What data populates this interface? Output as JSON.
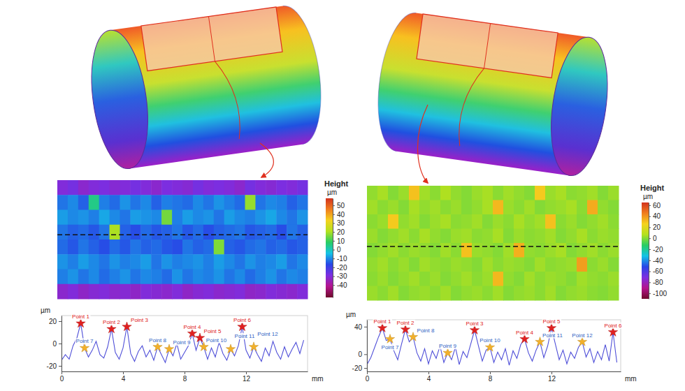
{
  "chart_data": [
    {
      "type": "heatmap",
      "cells": [
        [
          -30,
          -28,
          -32,
          -30,
          -29,
          -31,
          -30,
          -28,
          -30,
          -32,
          -29,
          -30,
          -31,
          -28,
          -30,
          -29,
          -30,
          -32,
          -28,
          -30,
          -31,
          -29,
          -30,
          -28
        ],
        [
          -12,
          -10,
          -14,
          5,
          -11,
          -13,
          -9,
          -12,
          -10,
          -14,
          -11,
          -12,
          -13,
          -10,
          -12,
          -9,
          -11,
          -13,
          18,
          -12,
          -10,
          -11,
          -14,
          -12
        ],
        [
          -8,
          -10,
          -9,
          -11,
          -7,
          -10,
          -12,
          -8,
          -9,
          -10,
          15,
          -11,
          -8,
          -10,
          -9,
          -12,
          -8,
          -10,
          -11,
          -9,
          -7,
          -10,
          -12,
          -9
        ],
        [
          -12,
          -14,
          -13,
          -15,
          -12,
          20,
          -14,
          -16,
          -13,
          -15,
          -14,
          -12,
          -15,
          -13,
          -16,
          -14,
          -13,
          -12,
          -15,
          -14,
          -13,
          -16,
          -12,
          -14
        ],
        [
          -13,
          -15,
          -12,
          -14,
          -16,
          -13,
          -15,
          -12,
          -14,
          -13,
          -15,
          -16,
          -12,
          -14,
          -13,
          16,
          -14,
          -15,
          -13,
          -12,
          -14,
          -13,
          -15,
          -14
        ],
        [
          -9,
          -11,
          -8,
          -10,
          -12,
          -9,
          -11,
          -10,
          -8,
          -12,
          -9,
          -11,
          -10,
          -9,
          -11,
          -8,
          -10,
          -12,
          -9,
          -11,
          -10,
          -8,
          -12,
          -10
        ],
        [
          -11,
          -9,
          -12,
          -10,
          -13,
          -11,
          -9,
          -12,
          -10,
          -11,
          -13,
          -9,
          -12,
          -10,
          -11,
          -9,
          -12,
          -10,
          -13,
          -11,
          -9,
          -12,
          -10,
          -11
        ],
        [
          -32,
          -30,
          -33,
          -31,
          -30,
          -32,
          -31,
          -33,
          -30,
          -31,
          -32,
          -30,
          -33,
          -31,
          -30,
          -32,
          -31,
          -30,
          -33,
          -32,
          -30,
          -31,
          -32,
          -30
        ]
      ],
      "colorbar": {
        "title": "Height",
        "unit": "µm",
        "range": [
          -54,
          58
        ],
        "ticks": [
          50,
          40,
          30,
          20,
          10,
          0,
          -10,
          -20,
          -30,
          -40
        ]
      }
    },
    {
      "type": "line",
      "x": [
        0,
        0.25,
        0.5,
        0.75,
        1,
        1.25,
        1.5,
        1.75,
        2,
        2.25,
        2.5,
        2.75,
        3,
        3.25,
        3.5,
        3.75,
        4,
        4.25,
        4.5,
        4.75,
        5,
        5.25,
        5.5,
        5.75,
        6,
        6.25,
        6.5,
        6.75,
        7,
        7.25,
        7.5,
        7.75,
        8,
        8.25,
        8.5,
        8.75,
        9,
        9.25,
        9.5,
        9.75,
        10,
        10.25,
        10.5,
        10.75,
        11,
        11.25,
        11.5,
        11.75,
        12,
        12.25,
        12.5,
        12.75,
        13,
        13.25,
        13.5,
        13.75,
        14,
        14.25,
        14.5,
        14.75,
        15,
        15.25,
        15.5,
        15.75
      ],
      "values": [
        -15,
        -10,
        -14,
        -2,
        5,
        18,
        -4,
        -12,
        -6,
        2,
        -10,
        -13,
        -3,
        13,
        -8,
        -14,
        -4,
        15,
        -9,
        -16,
        -7,
        -2,
        -12,
        -6,
        -15,
        -3,
        -10,
        -17,
        -5,
        -11,
        0,
        -14,
        -8,
        -2,
        9,
        -6,
        5,
        -3,
        -14,
        -4,
        -12,
        1,
        -9,
        -15,
        -5,
        -11,
        -2,
        15,
        -6,
        -13,
        -3,
        -10,
        -16,
        -4,
        -11,
        2,
        -8,
        -14,
        -3,
        -12,
        -5,
        1,
        -9,
        3
      ],
      "color": "#4f4fd8",
      "xlim": [
        0,
        16
      ],
      "xticks": [
        0,
        4,
        8,
        12
      ],
      "ylim": [
        -25,
        25
      ],
      "yticks": [
        -20,
        0,
        20
      ],
      "x_label": "mm",
      "y_label": "µm",
      "peaks": {
        "color": "#e02020",
        "marker": "star",
        "points": [
          {
            "text": "Point 1",
            "x": 1.25,
            "y": 18
          },
          {
            "text": "Point 2",
            "x": 3.25,
            "y": 13
          },
          {
            "text": "Point 3",
            "x": 4.25,
            "y": 15
          },
          {
            "text": "Point 4",
            "x": 8.5,
            "y": 9
          },
          {
            "text": "Point 5",
            "x": 9,
            "y": 5
          },
          {
            "text": "Point 6",
            "x": 11.75,
            "y": 15
          }
        ]
      },
      "valleys": {
        "color": "#f2b02a",
        "marker": "star",
        "points": [
          {
            "text": "Point 7",
            "x": 1.5,
            "y": -4
          },
          {
            "text": "Point 8",
            "x": 6.25,
            "y": -3
          },
          {
            "text": "Point 9",
            "x": 7,
            "y": -5
          },
          {
            "text": "Point 10",
            "x": 9.25,
            "y": -3
          },
          {
            "text": "Point 11",
            "x": 11,
            "y": -5
          },
          {
            "text": "Point 12",
            "x": 12.5,
            "y": -3
          }
        ]
      }
    },
    {
      "type": "heatmap",
      "cells": [
        [
          2,
          5,
          0,
          3,
          30,
          4,
          1,
          6,
          2,
          0,
          3,
          5,
          1,
          4,
          2,
          0,
          28,
          3,
          5,
          1,
          2,
          4,
          0,
          3
        ],
        [
          4,
          1,
          3,
          0,
          5,
          2,
          4,
          1,
          3,
          0,
          2,
          5,
          32,
          3,
          1,
          4,
          0,
          2,
          3,
          5,
          1,
          35,
          2,
          0
        ],
        [
          1,
          3,
          28,
          2,
          4,
          0,
          3,
          5,
          1,
          2,
          4,
          0,
          3,
          1,
          5,
          2,
          4,
          30,
          1,
          3,
          0,
          2,
          4,
          1
        ],
        [
          3,
          0,
          2,
          4,
          1,
          5,
          2,
          0,
          3,
          4,
          1,
          2,
          5,
          0,
          3,
          1,
          2,
          4,
          0,
          2,
          5,
          1,
          3,
          2
        ],
        [
          0,
          2,
          4,
          1,
          3,
          2,
          0,
          4,
          1,
          30,
          3,
          2,
          0,
          4,
          34,
          2,
          1,
          3,
          5,
          0,
          2,
          4,
          1,
          3
        ],
        [
          2,
          4,
          1,
          3,
          0,
          4,
          2,
          1,
          3,
          2,
          0,
          4,
          1,
          3,
          2,
          0,
          4,
          1,
          2,
          3,
          38,
          1,
          3,
          0
        ],
        [
          1,
          3,
          0,
          2,
          4,
          1,
          3,
          0,
          2,
          4,
          1,
          3,
          32,
          2,
          0,
          4,
          1,
          3,
          2,
          0,
          4,
          2,
          1,
          3
        ],
        [
          3,
          1,
          4,
          0,
          2,
          3,
          1,
          4,
          0,
          2,
          3,
          1,
          4,
          0,
          2,
          3,
          1,
          4,
          0,
          2,
          3,
          1,
          0,
          2
        ]
      ],
      "colorbar": {
        "title": "Height",
        "unit": "µm",
        "range": [
          -110,
          65
        ],
        "ticks": [
          60,
          40,
          20,
          0,
          -20,
          -40,
          -60,
          -80,
          -100
        ]
      }
    },
    {
      "type": "line",
      "x": [
        0,
        0.25,
        0.5,
        0.75,
        1,
        1.25,
        1.5,
        1.75,
        2,
        2.25,
        2.5,
        2.75,
        3,
        3.25,
        3.5,
        3.75,
        4,
        4.25,
        4.5,
        4.75,
        5,
        5.25,
        5.5,
        5.75,
        6,
        6.25,
        6.5,
        6.75,
        7,
        7.25,
        7.5,
        7.75,
        8,
        8.25,
        8.5,
        8.75,
        9,
        9.25,
        9.5,
        9.75,
        10,
        10.25,
        10.5,
        10.75,
        11,
        11.25,
        11.5,
        11.75,
        12,
        12.25,
        12.5,
        12.75,
        13,
        13.25,
        13.5,
        13.75,
        14,
        14.25,
        14.5,
        14.75,
        15,
        15.25,
        15.5,
        15.75,
        16,
        16.25
      ],
      "values": [
        -15,
        -5,
        10,
        25,
        38,
        20,
        22,
        5,
        -8,
        15,
        36,
        18,
        25,
        2,
        -10,
        8,
        -14,
        5,
        -6,
        12,
        -12,
        2,
        -8,
        10,
        -15,
        4,
        -5,
        15,
        35,
        12,
        -10,
        6,
        10,
        -12,
        3,
        -8,
        8,
        -16,
        5,
        -6,
        14,
        22,
        2,
        -10,
        6,
        18,
        -5,
        12,
        38,
        15,
        -8,
        6,
        -14,
        3,
        -6,
        10,
        18,
        -4,
        8,
        -12,
        4,
        -8,
        14,
        -10,
        32,
        -12
      ],
      "color": "#4f4fd8",
      "xlim": [
        0,
        16.5
      ],
      "xticks": [
        0,
        4,
        8,
        12
      ],
      "ylim": [
        -25,
        50
      ],
      "yticks": [
        -20,
        0,
        40
      ],
      "x_label": "mm",
      "y_label": "µm",
      "peaks": {
        "color": "#e02020",
        "marker": "star",
        "points": [
          {
            "text": "Point 1",
            "x": 1,
            "y": 38
          },
          {
            "text": "Point 2",
            "x": 2.5,
            "y": 36
          },
          {
            "text": "Point 3",
            "x": 7,
            "y": 35
          },
          {
            "text": "Point 4",
            "x": 10.25,
            "y": 22
          },
          {
            "text": "Point 5",
            "x": 12,
            "y": 38
          },
          {
            "text": "Point 6",
            "x": 16,
            "y": 32
          }
        ]
      },
      "valleys": {
        "color": "#f2b02a",
        "marker": "star",
        "points": [
          {
            "text": "Point 7",
            "x": 1.5,
            "y": 22
          },
          {
            "text": "Point 8",
            "x": 3,
            "y": 25
          },
          {
            "text": "Point 9",
            "x": 5.25,
            "y": 2
          },
          {
            "text": "Point 10",
            "x": 8,
            "y": 10
          },
          {
            "text": "Point 11",
            "x": 11.25,
            "y": 18
          },
          {
            "text": "Point 12",
            "x": 14,
            "y": 18
          }
        ]
      }
    }
  ]
}
